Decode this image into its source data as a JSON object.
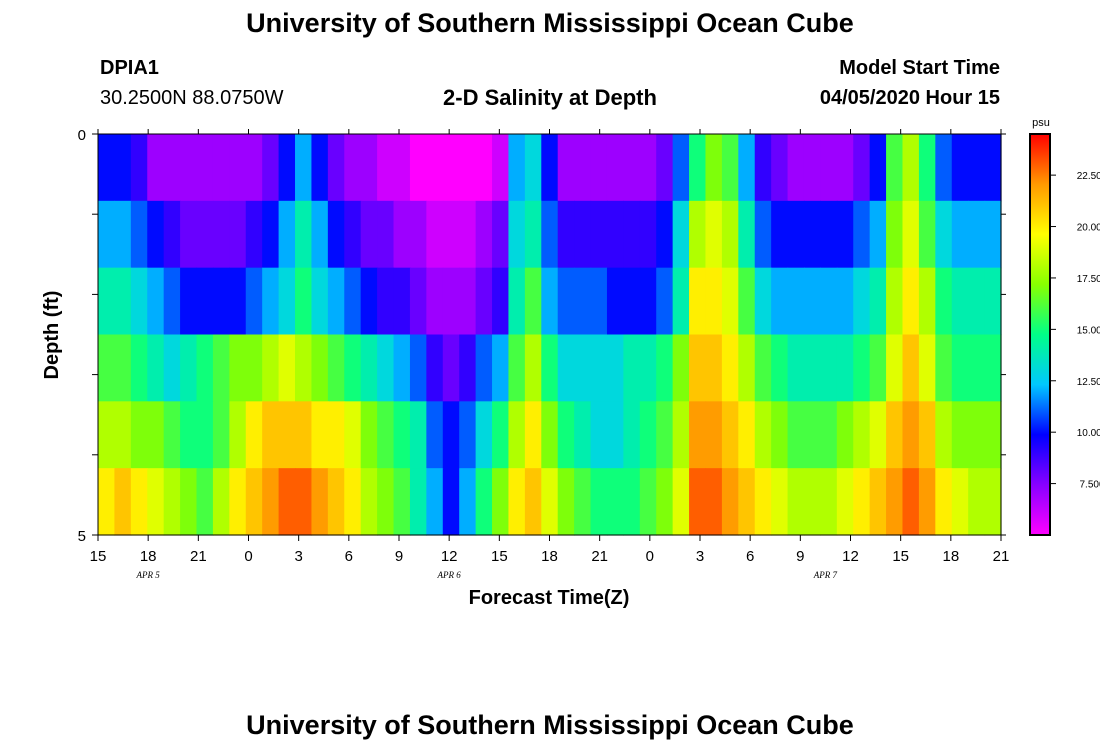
{
  "page": {
    "title": "University of Southern Mississippi Ocean Cube",
    "station_id": "DPIA1",
    "station_coords": "30.2500N 88.0750W",
    "plot_title": "2-D Salinity at Depth",
    "model_label": "Model Start Time",
    "model_start": "04/05/2020 Hour 15",
    "footer_title": "University of Southern Mississippi Ocean Cube"
  },
  "chart_data": {
    "type": "heatmap",
    "title": "2-D Salinity at Depth",
    "xlabel": "Forecast Time(Z)",
    "ylabel": "Depth (ft)",
    "x_hours": [
      15,
      16,
      17,
      18,
      19,
      20,
      21,
      22,
      23,
      0,
      1,
      2,
      3,
      4,
      5,
      6,
      7,
      8,
      9,
      10,
      11,
      12,
      13,
      14,
      15,
      16,
      17,
      18,
      19,
      20,
      21,
      22,
      23,
      0,
      1,
      2,
      3,
      4,
      5,
      6,
      7,
      8,
      9,
      10,
      11,
      12,
      13,
      14,
      15,
      16,
      17,
      18,
      19,
      20,
      21
    ],
    "x_tick_labels": [
      "15",
      "18",
      "21",
      "0",
      "3",
      "6",
      "9",
      "12",
      "15",
      "18",
      "21",
      "0",
      "3",
      "6",
      "9",
      "12",
      "15",
      "18",
      "21"
    ],
    "x_date_labels": [
      {
        "label": "APR 5",
        "at_hour_index": 3
      },
      {
        "label": "APR 6",
        "at_hour_index": 21
      },
      {
        "label": "APR 7",
        "at_hour_index": 43.5
      }
    ],
    "y_depth_layers": [
      0,
      1,
      2,
      3,
      4,
      5
    ],
    "y_tick_labels": [
      "0",
      "5"
    ],
    "ylim": [
      0,
      5
    ],
    "colorbar": {
      "unit": "psu",
      "min": 5,
      "max": 24.5,
      "ticks": [
        "7.500",
        "10.000",
        "12.500",
        "15.000",
        "17.500",
        "20.000",
        "22.500"
      ],
      "colors": [
        "#ff00ff",
        "#8800ff",
        "#0000ff",
        "#00c8ff",
        "#00ff88",
        "#88ff00",
        "#ffff00",
        "#ff9900",
        "#ff0000"
      ]
    },
    "salinity": [
      [
        10,
        10,
        9,
        7,
        7,
        7,
        7,
        7,
        7,
        7,
        8,
        10,
        12,
        10,
        8,
        7,
        7,
        6,
        6,
        5,
        5,
        5,
        5,
        5,
        6,
        12,
        13,
        10,
        7,
        7,
        7,
        7,
        7,
        7,
        8,
        11,
        15,
        17,
        16,
        12,
        9,
        8,
        7,
        7,
        7,
        7,
        8,
        10,
        16,
        18,
        15,
        11,
        10,
        10,
        10
      ],
      [
        12,
        12,
        11,
        10,
        9,
        8,
        8,
        8,
        8,
        9,
        10,
        12,
        14,
        12,
        10,
        9,
        8,
        8,
        7,
        7,
        6,
        6,
        6,
        7,
        8,
        13,
        14,
        11,
        9,
        9,
        9,
        9,
        9,
        9,
        10,
        13,
        18,
        19,
        18,
        14,
        11,
        10,
        10,
        10,
        10,
        10,
        11,
        12,
        17,
        19,
        16,
        13,
        12,
        12,
        12
      ],
      [
        14,
        14,
        13,
        12,
        11,
        10,
        10,
        10,
        10,
        11,
        12,
        13,
        15,
        13,
        12,
        11,
        10,
        9,
        9,
        8,
        7,
        7,
        7,
        8,
        9,
        14,
        16,
        12,
        11,
        11,
        11,
        10,
        10,
        10,
        11,
        14,
        20,
        20,
        19,
        16,
        13,
        12,
        12,
        12,
        12,
        12,
        13,
        14,
        18,
        20,
        18,
        15,
        14,
        14,
        14
      ],
      [
        16,
        16,
        15,
        14,
        13,
        14,
        15,
        16,
        17,
        17,
        18,
        19,
        18,
        17,
        16,
        15,
        14,
        13,
        12,
        11,
        9,
        8,
        9,
        11,
        12,
        16,
        18,
        15,
        13,
        13,
        13,
        13,
        14,
        14,
        15,
        17,
        21,
        21,
        20,
        18,
        16,
        15,
        14,
        14,
        14,
        14,
        15,
        16,
        19,
        21,
        19,
        16,
        15,
        15,
        15
      ],
      [
        18,
        18,
        17,
        17,
        16,
        15,
        15,
        16,
        18,
        20,
        21,
        21,
        21,
        20,
        20,
        19,
        17,
        16,
        15,
        14,
        11,
        10,
        11,
        13,
        15,
        18,
        20,
        17,
        15,
        14,
        13,
        13,
        14,
        15,
        16,
        18,
        22,
        22,
        21,
        20,
        18,
        17,
        16,
        16,
        16,
        17,
        18,
        19,
        21,
        22,
        21,
        18,
        17,
        17,
        17
      ],
      [
        20,
        21,
        20,
        19,
        18,
        17,
        16,
        18,
        20,
        21,
        22,
        23,
        23,
        22,
        21,
        20,
        18,
        17,
        16,
        14,
        12,
        10,
        12,
        15,
        17,
        20,
        21,
        19,
        17,
        16,
        15,
        15,
        15,
        16,
        17,
        19,
        23,
        23,
        22,
        21,
        20,
        19,
        18,
        18,
        18,
        19,
        20,
        21,
        22,
        23,
        22,
        20,
        19,
        18,
        18
      ]
    ]
  }
}
